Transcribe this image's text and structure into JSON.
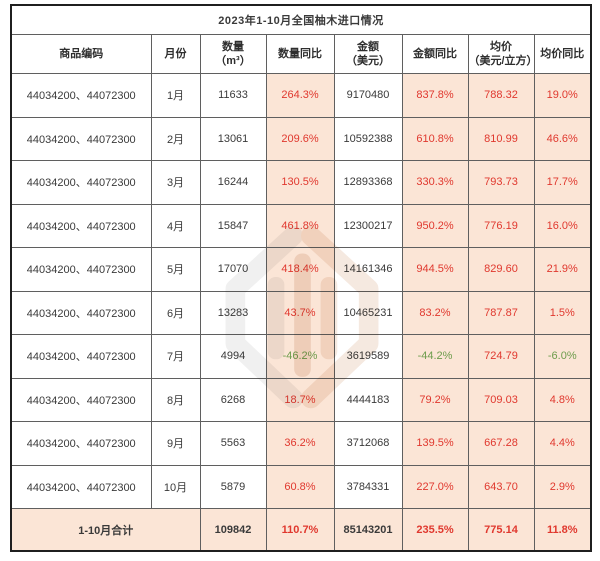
{
  "chart_data": {
    "type": "table",
    "title": "2023年1-10月全国柚木进口情况",
    "columns": [
      {
        "label": "商品编码",
        "sub": ""
      },
      {
        "label": "月份",
        "sub": ""
      },
      {
        "label": "数量",
        "sub": "（m³）"
      },
      {
        "label": "数量同比",
        "sub": ""
      },
      {
        "label": "金额",
        "sub": "（美元）"
      },
      {
        "label": "金额同比",
        "sub": ""
      },
      {
        "label": "均价",
        "sub": "（美元/立方）"
      },
      {
        "label": "均价同比",
        "sub": ""
      }
    ],
    "rows": [
      {
        "code": "44034200、44072300",
        "month": "1月",
        "qty": "11633",
        "qty_yoy": "264.3%",
        "amount": "9170480",
        "amount_yoy": "837.8%",
        "price": "788.32",
        "price_yoy": "19.0%"
      },
      {
        "code": "44034200、44072300",
        "month": "2月",
        "qty": "13061",
        "qty_yoy": "209.6%",
        "amount": "10592388",
        "amount_yoy": "610.8%",
        "price": "810.99",
        "price_yoy": "46.6%"
      },
      {
        "code": "44034200、44072300",
        "month": "3月",
        "qty": "16244",
        "qty_yoy": "130.5%",
        "amount": "12893368",
        "amount_yoy": "330.3%",
        "price": "793.73",
        "price_yoy": "17.7%"
      },
      {
        "code": "44034200、44072300",
        "month": "4月",
        "qty": "15847",
        "qty_yoy": "461.8%",
        "amount": "12300217",
        "amount_yoy": "950.2%",
        "price": "776.19",
        "price_yoy": "16.0%"
      },
      {
        "code": "44034200、44072300",
        "month": "5月",
        "qty": "17070",
        "qty_yoy": "418.4%",
        "amount": "14161346",
        "amount_yoy": "944.5%",
        "price": "829.60",
        "price_yoy": "21.9%"
      },
      {
        "code": "44034200、44072300",
        "month": "6月",
        "qty": "13283",
        "qty_yoy": "43.7%",
        "amount": "10465231",
        "amount_yoy": "83.2%",
        "price": "787.87",
        "price_yoy": "1.5%"
      },
      {
        "code": "44034200、44072300",
        "month": "7月",
        "qty": "4994",
        "qty_yoy": "-46.2%",
        "amount": "3619589",
        "amount_yoy": "-44.2%",
        "price": "724.79",
        "price_yoy": "-6.0%"
      },
      {
        "code": "44034200、44072300",
        "month": "8月",
        "qty": "6268",
        "qty_yoy": "18.7%",
        "amount": "4444183",
        "amount_yoy": "79.2%",
        "price": "709.03",
        "price_yoy": "4.8%"
      },
      {
        "code": "44034200、44072300",
        "month": "9月",
        "qty": "5563",
        "qty_yoy": "36.2%",
        "amount": "3712068",
        "amount_yoy": "139.5%",
        "price": "667.28",
        "price_yoy": "4.4%"
      },
      {
        "code": "44034200、44072300",
        "month": "10月",
        "qty": "5879",
        "qty_yoy": "60.8%",
        "amount": "3784331",
        "amount_yoy": "227.0%",
        "price": "643.70",
        "price_yoy": "2.9%"
      }
    ],
    "total": {
      "label": "1-10月合计",
      "qty": "109842",
      "qty_yoy": "110.7%",
      "amount": "85143201",
      "amount_yoy": "235.5%",
      "price": "775.14",
      "price_yoy": "11.8%"
    }
  },
  "colors": {
    "highlight_bg": "#fbe5d6",
    "positive_red": "#e0382e",
    "negative_green": "#6d9c4c",
    "text": "#3a3a3a"
  }
}
